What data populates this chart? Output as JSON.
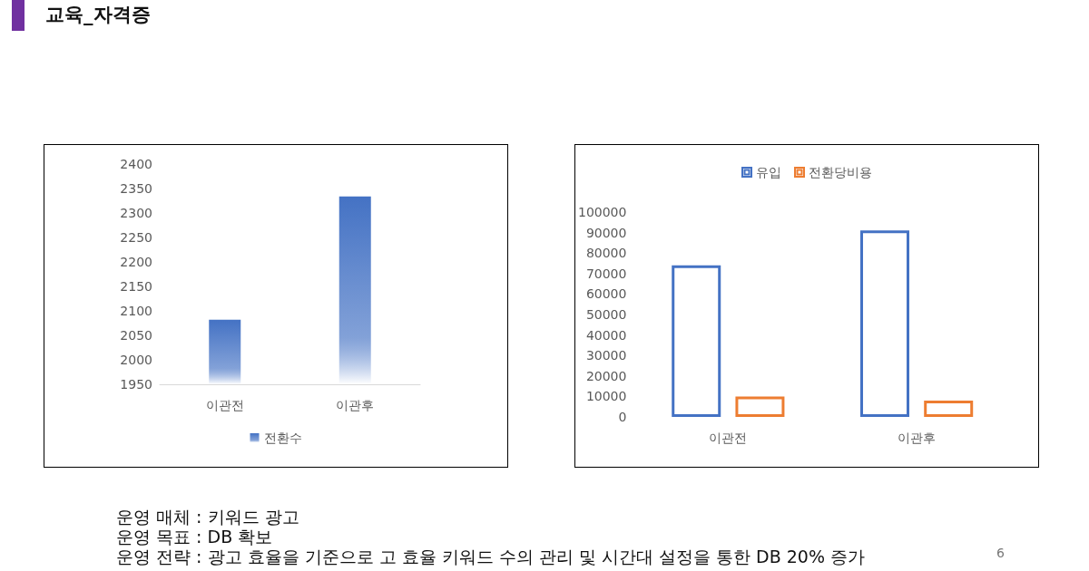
{
  "chart_data": [
    {
      "type": "other",
      "title": "교육_자격증"
    },
    {
      "type": "bar",
      "categories": [
        "이관전",
        "이관후"
      ],
      "series": [
        {
          "name": "전환수",
          "color": "#4472c4",
          "values": [
            2082,
            2334
          ]
        }
      ],
      "ylim": [
        1950,
        2400
      ],
      "yticks": [
        1950,
        2000,
        2050,
        2100,
        2150,
        2200,
        2250,
        2300,
        2350,
        2400
      ],
      "legend": "bottom"
    },
    {
      "type": "bar",
      "categories": [
        "이관전",
        "이관후"
      ],
      "series": [
        {
          "name": "유입",
          "color": "#4472c4",
          "values": [
            74000,
            91000
          ]
        },
        {
          "name": "전환당비용",
          "color": "#ed7d31",
          "values": [
            10000,
            8000
          ]
        }
      ],
      "ylim": [
        0,
        100000
      ],
      "yticks": [
        0,
        10000,
        20000,
        30000,
        40000,
        50000,
        60000,
        70000,
        80000,
        90000,
        100000
      ],
      "legend": "top"
    },
    {
      "type": "other",
      "annotations": [
        "운영 매체 : 키워드 광고",
        "운영 목표 : DB 확보",
        "운영 전략 : 광고 효율을 기준으로 고 효율 키워드 수의 관리 및 시간대 설정을 통한 DB 20% 증가",
        "6"
      ]
    }
  ]
}
